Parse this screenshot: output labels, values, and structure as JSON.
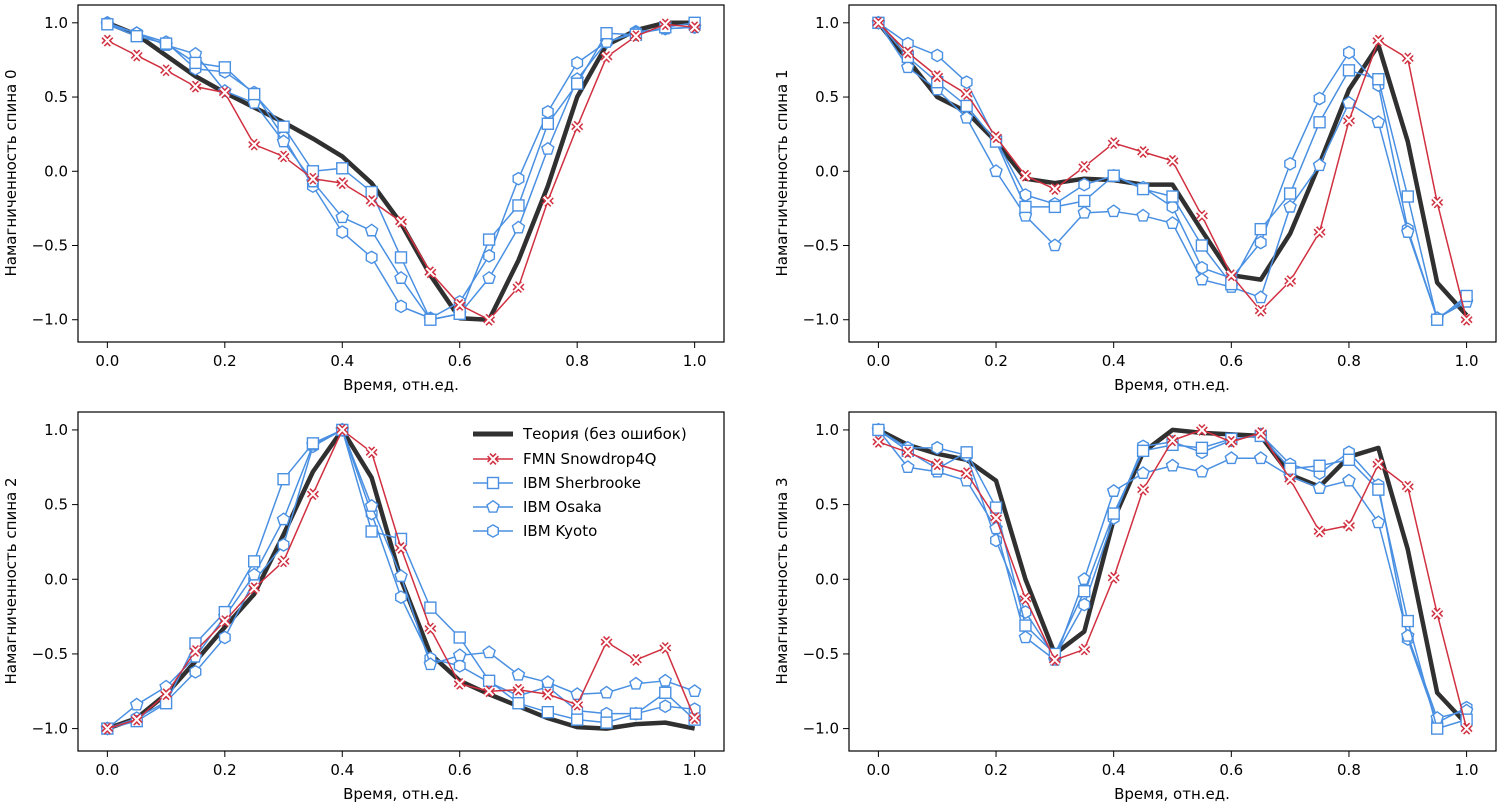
{
  "chart_data": [
    {
      "type": "line",
      "xlabel": "Время, отн.ед.",
      "ylabel": "Намагниченность спина 0",
      "xlim": [
        -0.05,
        1.05
      ],
      "ylim": [
        -1.15,
        1.12
      ],
      "xticks": [
        0.0,
        0.2,
        0.4,
        0.6,
        0.8,
        1.0
      ],
      "xtick_labels": [
        "0.0",
        "0.2",
        "0.4",
        "0.6",
        "0.8",
        "1.0"
      ],
      "yticks": [
        1.0,
        0.5,
        0.0,
        -0.5,
        -1.0
      ],
      "ytick_labels": [
        "1.0",
        "0.5",
        "0.0",
        "−0.5",
        "−1.0"
      ],
      "grid": false,
      "x": [
        0.0,
        0.05,
        0.1,
        0.15,
        0.2,
        0.25,
        0.3,
        0.35,
        0.4,
        0.45,
        0.5,
        0.55,
        0.6,
        0.65,
        0.7,
        0.75,
        0.8,
        0.85,
        0.9,
        0.95,
        1.0
      ],
      "series": [
        {
          "name": "Теория (без ошибок)",
          "values": [
            1.0,
            0.92,
            0.78,
            0.64,
            0.53,
            0.43,
            0.33,
            0.22,
            0.1,
            -0.08,
            -0.35,
            -0.7,
            -0.99,
            -1.0,
            -0.6,
            -0.1,
            0.5,
            0.85,
            0.95,
            1.0,
            1.0
          ]
        },
        {
          "name": "FMN Snowdrop4Q",
          "values": [
            0.88,
            0.78,
            0.68,
            0.57,
            0.53,
            0.18,
            0.1,
            -0.05,
            -0.08,
            -0.2,
            -0.34,
            -0.68,
            -0.9,
            -1.0,
            -0.78,
            -0.2,
            0.3,
            0.77,
            0.91,
            0.99,
            0.97
          ]
        },
        {
          "name": "IBM Sherbrooke",
          "values": [
            0.99,
            0.91,
            0.86,
            0.73,
            0.7,
            0.52,
            0.3,
            0.0,
            0.02,
            -0.14,
            -0.58,
            -1.0,
            -0.96,
            -0.46,
            -0.23,
            0.32,
            0.59,
            0.93,
            0.92,
            0.97,
            1.0
          ]
        },
        {
          "name": "IBM Osaka",
          "values": [
            0.99,
            0.93,
            0.85,
            0.79,
            0.54,
            0.46,
            0.2,
            -0.07,
            -0.31,
            -0.4,
            -0.72,
            -1.0,
            -0.96,
            -0.72,
            -0.38,
            0.15,
            0.62,
            0.87,
            0.93,
            0.96,
            0.97
          ]
        },
        {
          "name": "IBM Kyoto",
          "values": [
            1.0,
            0.93,
            0.87,
            0.69,
            0.67,
            0.53,
            0.23,
            -0.1,
            -0.41,
            -0.58,
            -0.91,
            -0.99,
            -0.88,
            -0.57,
            -0.05,
            0.4,
            0.73,
            0.87,
            0.94,
            0.96,
            0.97
          ]
        }
      ]
    },
    {
      "type": "line",
      "xlabel": "Время, отн.ед.",
      "ylabel": "Намагниченность спина 1",
      "xlim": [
        -0.05,
        1.05
      ],
      "ylim": [
        -1.15,
        1.12
      ],
      "xticks": [
        0.0,
        0.2,
        0.4,
        0.6,
        0.8,
        1.0
      ],
      "xtick_labels": [
        "0.0",
        "0.2",
        "0.4",
        "0.6",
        "0.8",
        "1.0"
      ],
      "yticks": [
        1.0,
        0.5,
        0.0,
        -0.5,
        -1.0
      ],
      "ytick_labels": [
        "1.0",
        "0.5",
        "0.0",
        "−0.5",
        "−1.0"
      ],
      "grid": false,
      "x": [
        0.0,
        0.05,
        0.1,
        0.15,
        0.2,
        0.25,
        0.3,
        0.35,
        0.4,
        0.45,
        0.5,
        0.55,
        0.6,
        0.65,
        0.7,
        0.75,
        0.8,
        0.85,
        0.9,
        0.95,
        1.0
      ],
      "series": [
        {
          "name": "Теория (без ошибок)",
          "values": [
            1.0,
            0.75,
            0.5,
            0.4,
            0.2,
            -0.05,
            -0.08,
            -0.05,
            -0.06,
            -0.09,
            -0.09,
            -0.4,
            -0.7,
            -0.73,
            -0.42,
            0.05,
            0.55,
            0.85,
            0.2,
            -0.75,
            -0.97
          ]
        },
        {
          "name": "FMN Snowdrop4Q",
          "values": [
            1.0,
            0.8,
            0.64,
            0.52,
            0.23,
            -0.03,
            -0.12,
            0.03,
            0.19,
            0.13,
            0.07,
            -0.3,
            -0.7,
            -0.94,
            -0.74,
            -0.41,
            0.34,
            0.88,
            0.76,
            -0.21,
            -1.0
          ]
        },
        {
          "name": "IBM Sherbrooke",
          "values": [
            1.0,
            0.77,
            0.6,
            0.44,
            0.2,
            -0.24,
            -0.24,
            -0.2,
            -0.03,
            -0.12,
            -0.17,
            -0.5,
            -0.76,
            -0.39,
            -0.15,
            0.33,
            0.68,
            0.62,
            -0.17,
            -1.0,
            -0.84
          ]
        },
        {
          "name": "IBM Osaka",
          "values": [
            1.0,
            0.7,
            0.55,
            0.36,
            0.0,
            -0.3,
            -0.5,
            -0.28,
            -0.27,
            -0.3,
            -0.35,
            -0.73,
            -0.78,
            -0.85,
            -0.24,
            0.04,
            0.46,
            0.33,
            -0.41,
            -0.99,
            -0.88
          ]
        },
        {
          "name": "IBM Kyoto",
          "values": [
            1.0,
            0.86,
            0.78,
            0.6,
            0.21,
            -0.16,
            -0.22,
            -0.09,
            -0.03,
            -0.11,
            -0.24,
            -0.65,
            -0.72,
            -0.48,
            0.05,
            0.49,
            0.8,
            0.58,
            -0.39,
            -0.99,
            -0.86
          ]
        }
      ]
    },
    {
      "type": "line",
      "xlabel": "Время, отн.ед.",
      "ylabel": "Намагниченность спина 2",
      "xlim": [
        -0.05,
        1.05
      ],
      "ylim": [
        -1.15,
        1.12
      ],
      "xticks": [
        0.0,
        0.2,
        0.4,
        0.6,
        0.8,
        1.0
      ],
      "xtick_labels": [
        "0.0",
        "0.2",
        "0.4",
        "0.6",
        "0.8",
        "1.0"
      ],
      "yticks": [
        1.0,
        0.5,
        0.0,
        -0.5,
        -1.0
      ],
      "ytick_labels": [
        "1.0",
        "0.5",
        "0.0",
        "−0.5",
        "−1.0"
      ],
      "grid": false,
      "legend": "top-right",
      "x": [
        0.0,
        0.05,
        0.1,
        0.15,
        0.2,
        0.25,
        0.3,
        0.35,
        0.4,
        0.45,
        0.5,
        0.55,
        0.6,
        0.65,
        0.7,
        0.75,
        0.8,
        0.85,
        0.9,
        0.95,
        1.0
      ],
      "series": [
        {
          "name": "Теория (без ошибок)",
          "values": [
            -1.0,
            -0.93,
            -0.77,
            -0.55,
            -0.32,
            -0.1,
            0.3,
            0.72,
            1.0,
            0.68,
            0.0,
            -0.5,
            -0.68,
            -0.77,
            -0.85,
            -0.93,
            -0.99,
            -1.0,
            -0.97,
            -0.96,
            -1.0
          ]
        },
        {
          "name": "FMN Snowdrop4Q",
          "values": [
            -1.0,
            -0.94,
            -0.77,
            -0.48,
            -0.28,
            -0.06,
            0.12,
            0.57,
            1.0,
            0.85,
            0.21,
            -0.33,
            -0.7,
            -0.75,
            -0.74,
            -0.77,
            -0.84,
            -0.42,
            -0.54,
            -0.46,
            -0.93
          ]
        },
        {
          "name": "IBM Sherbrooke",
          "values": [
            -1.0,
            -0.95,
            -0.83,
            -0.43,
            -0.22,
            0.12,
            0.67,
            0.91,
            1.0,
            0.32,
            0.27,
            -0.19,
            -0.39,
            -0.68,
            -0.83,
            -0.89,
            -0.94,
            -0.96,
            -0.9,
            -0.76,
            -0.94
          ]
        },
        {
          "name": "IBM Osaka",
          "values": [
            -1.0,
            -0.84,
            -0.72,
            -0.52,
            -0.25,
            0.03,
            0.4,
            0.9,
            1.0,
            0.49,
            0.02,
            -0.57,
            -0.51,
            -0.49,
            -0.64,
            -0.69,
            -0.77,
            -0.76,
            -0.7,
            -0.68,
            -0.75
          ]
        },
        {
          "name": "IBM Kyoto",
          "values": [
            -1.0,
            -0.93,
            -0.82,
            -0.62,
            -0.39,
            -0.01,
            0.23,
            0.89,
            1.0,
            0.44,
            -0.12,
            -0.53,
            -0.58,
            -0.69,
            -0.78,
            -0.72,
            -0.88,
            -0.9,
            -0.9,
            -0.85,
            -0.87
          ]
        }
      ]
    },
    {
      "type": "line",
      "xlabel": "Время, отн.ед.",
      "ylabel": "Намагниченность спина 3",
      "xlim": [
        -0.05,
        1.05
      ],
      "ylim": [
        -1.15,
        1.12
      ],
      "xticks": [
        0.0,
        0.2,
        0.4,
        0.6,
        0.8,
        1.0
      ],
      "xtick_labels": [
        "0.0",
        "0.2",
        "0.4",
        "0.6",
        "0.8",
        "1.0"
      ],
      "yticks": [
        1.0,
        0.5,
        0.0,
        -0.5,
        -1.0
      ],
      "ytick_labels": [
        "1.0",
        "0.5",
        "0.0",
        "−0.5",
        "−1.0"
      ],
      "grid": false,
      "x": [
        0.0,
        0.05,
        0.1,
        0.15,
        0.2,
        0.25,
        0.3,
        0.35,
        0.4,
        0.45,
        0.5,
        0.55,
        0.6,
        0.65,
        0.7,
        0.75,
        0.8,
        0.85,
        0.9,
        0.95,
        1.0
      ],
      "series": [
        {
          "name": "Теория (без ошибок)",
          "values": [
            1.0,
            0.9,
            0.84,
            0.8,
            0.66,
            0.0,
            -0.5,
            -0.35,
            0.4,
            0.85,
            1.0,
            0.98,
            0.97,
            0.96,
            0.7,
            0.62,
            0.82,
            0.88,
            0.2,
            -0.76,
            -0.97
          ]
        },
        {
          "name": "FMN Snowdrop4Q",
          "values": [
            0.92,
            0.85,
            0.77,
            0.71,
            0.41,
            -0.13,
            -0.54,
            -0.47,
            0.01,
            0.6,
            0.93,
            1.0,
            0.92,
            0.98,
            0.67,
            0.32,
            0.36,
            0.77,
            0.62,
            -0.23,
            -1.0
          ]
        },
        {
          "name": "IBM Sherbrooke",
          "values": [
            1.0,
            0.86,
            0.74,
            0.85,
            0.48,
            -0.31,
            -0.5,
            -0.08,
            0.44,
            0.86,
            0.9,
            0.88,
            0.94,
            0.96,
            0.74,
            0.76,
            0.8,
            0.6,
            -0.28,
            -1.0,
            -0.94
          ]
        },
        {
          "name": "IBM Osaka",
          "values": [
            1.0,
            0.75,
            0.72,
            0.66,
            0.34,
            -0.39,
            -0.54,
            0.0,
            0.59,
            0.71,
            0.76,
            0.72,
            0.81,
            0.81,
            0.69,
            0.61,
            0.66,
            0.38,
            -0.38,
            -0.93,
            -0.88
          ]
        },
        {
          "name": "IBM Kyoto",
          "values": [
            1.0,
            0.88,
            0.88,
            0.83,
            0.26,
            -0.22,
            -0.52,
            -0.17,
            0.41,
            0.89,
            0.92,
            0.85,
            0.93,
            0.97,
            0.77,
            0.71,
            0.85,
            0.63,
            -0.4,
            -0.96,
            -0.86
          ]
        }
      ]
    }
  ],
  "legend": {
    "items": [
      {
        "label": "Теория (без ошибок)",
        "marker": "none"
      },
      {
        "label": "FMN Snowdrop4Q",
        "marker": "x"
      },
      {
        "label": "IBM Sherbrooke",
        "marker": "square"
      },
      {
        "label": "IBM Osaka",
        "marker": "pentagon"
      },
      {
        "label": "IBM Kyoto",
        "marker": "hexagon"
      }
    ]
  },
  "colors": {
    "theory": "#303030",
    "fmn": "#d03040",
    "ibm": "#4a90e2",
    "axes": "#000000",
    "background": "#ffffff"
  }
}
